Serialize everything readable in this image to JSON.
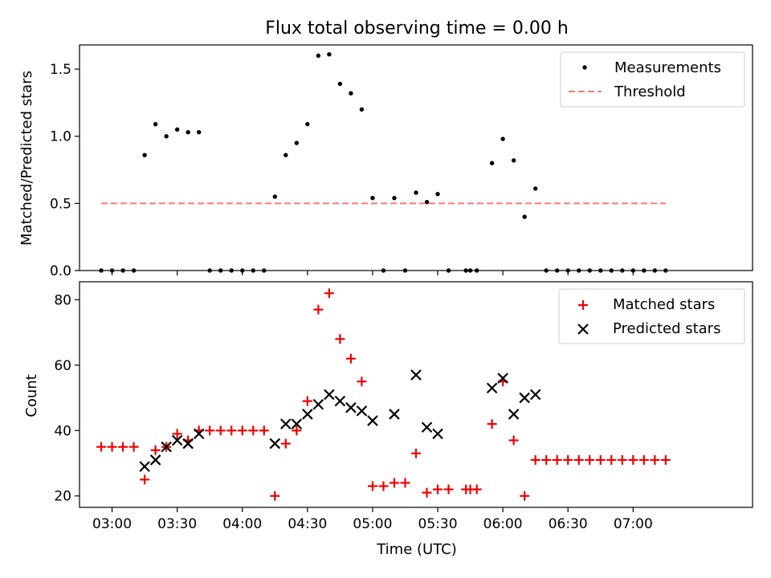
{
  "figure": {
    "title": "Flux total observing time = 0.00 h",
    "xlabel": "Time (UTC)"
  },
  "chart_data": [
    {
      "type": "scatter",
      "ylabel": "Matched/Predicted stars",
      "ylim": [
        0,
        1.68
      ],
      "yticks": [
        "0.0",
        "0.5",
        "1.0",
        "1.5"
      ],
      "ytick_values": [
        0,
        0.5,
        1.0,
        1.5
      ],
      "xlim": [
        "02:45",
        "07:55"
      ],
      "xticks": [
        "03:00",
        "03:30",
        "04:00",
        "04:30",
        "05:00",
        "05:30",
        "06:00",
        "06:30",
        "07:00"
      ],
      "xticks_visible": false,
      "grid": false,
      "legend": "upper-right",
      "series": [
        {
          "name": "Measurements",
          "kind": "points",
          "color": "#000000",
          "x": [
            "02:55",
            "03:00",
            "03:05",
            "03:10",
            "03:15",
            "03:20",
            "03:25",
            "03:30",
            "03:35",
            "03:40",
            "03:45",
            "03:50",
            "03:55",
            "04:00",
            "04:05",
            "04:10",
            "04:15",
            "04:20",
            "04:25",
            "04:30",
            "04:35",
            "04:40",
            "04:45",
            "04:50",
            "04:55",
            "05:00",
            "05:05",
            "05:10",
            "05:15",
            "05:20",
            "05:25",
            "05:30",
            "05:35",
            "05:43",
            "05:45",
            "05:48",
            "05:55",
            "06:00",
            "06:05",
            "06:10",
            "06:15",
            "06:20",
            "06:25",
            "06:30",
            "06:35",
            "06:40",
            "06:45",
            "06:50",
            "06:55",
            "07:00",
            "07:05",
            "07:10",
            "07:15"
          ],
          "y": [
            0.0,
            0.0,
            0.0,
            0.0,
            0.86,
            1.09,
            1.0,
            1.05,
            1.03,
            1.03,
            0.0,
            0.0,
            0.0,
            0.0,
            0.0,
            0.0,
            0.55,
            0.86,
            0.95,
            1.09,
            1.6,
            1.61,
            1.39,
            1.32,
            1.2,
            0.54,
            0.0,
            0.54,
            0.0,
            0.58,
            0.51,
            0.57,
            0.0,
            0.0,
            0.0,
            0.0,
            0.8,
            0.98,
            0.82,
            0.4,
            0.61,
            0.0,
            0.0,
            0.0,
            0.0,
            0.0,
            0.0,
            0.0,
            0.0,
            0.0,
            0.0,
            0.0,
            0.0
          ]
        },
        {
          "name": "Threshold",
          "kind": "dashed-line",
          "color": "#ff7777",
          "x": [
            "02:55",
            "07:15"
          ],
          "y": [
            0.5,
            0.5
          ]
        }
      ]
    },
    {
      "type": "scatter",
      "ylabel": "Count",
      "ylim": [
        16.5,
        85.5
      ],
      "yticks": [
        "20",
        "40",
        "60",
        "80"
      ],
      "ytick_values": [
        20,
        40,
        60,
        80
      ],
      "xlim": [
        "02:45",
        "07:55"
      ],
      "xticks": [
        "03:00",
        "03:30",
        "04:00",
        "04:30",
        "05:00",
        "05:30",
        "06:00",
        "06:30",
        "07:00"
      ],
      "xticks_visible": true,
      "grid": false,
      "legend": "upper-right",
      "series": [
        {
          "name": "Matched stars",
          "kind": "plus",
          "color": "#ee0000",
          "x": [
            "02:55",
            "03:00",
            "03:05",
            "03:10",
            "03:15",
            "03:20",
            "03:25",
            "03:30",
            "03:35",
            "03:40",
            "03:45",
            "03:50",
            "03:55",
            "04:00",
            "04:05",
            "04:10",
            "04:15",
            "04:20",
            "04:25",
            "04:30",
            "04:35",
            "04:40",
            "04:45",
            "04:50",
            "04:55",
            "05:00",
            "05:05",
            "05:10",
            "05:15",
            "05:20",
            "05:25",
            "05:30",
            "05:35",
            "05:43",
            "05:45",
            "05:48",
            "05:55",
            "06:00",
            "06:05",
            "06:10",
            "06:15",
            "06:20",
            "06:25",
            "06:30",
            "06:35",
            "06:40",
            "06:45",
            "06:50",
            "06:55",
            "07:00",
            "07:05",
            "07:10",
            "07:15"
          ],
          "y": [
            35,
            35,
            35,
            35,
            25,
            34,
            35,
            39,
            37,
            40,
            40,
            40,
            40,
            40,
            40,
            40,
            20,
            36,
            40,
            49,
            77,
            82,
            68,
            62,
            55,
            23,
            23,
            24,
            24,
            33,
            21,
            22,
            22,
            22,
            22,
            22,
            42,
            55,
            37,
            20,
            31,
            31,
            31,
            31,
            31,
            31,
            31,
            31,
            31,
            31,
            31,
            31,
            31
          ]
        },
        {
          "name": "Predicted stars",
          "kind": "cross",
          "color": "#000000",
          "x": [
            "03:15",
            "03:20",
            "03:25",
            "03:30",
            "03:35",
            "03:40",
            "04:15",
            "04:20",
            "04:25",
            "04:30",
            "04:35",
            "04:40",
            "04:45",
            "04:50",
            "04:55",
            "05:00",
            "05:10",
            "05:20",
            "05:25",
            "05:30",
            "05:55",
            "06:00",
            "06:05",
            "06:10",
            "06:15"
          ],
          "y": [
            29,
            31,
            35,
            37,
            36,
            39,
            36,
            42,
            42,
            45,
            48,
            51,
            49,
            47,
            46,
            43,
            45,
            57,
            41,
            39,
            53,
            56,
            45,
            50,
            51
          ]
        }
      ]
    }
  ]
}
